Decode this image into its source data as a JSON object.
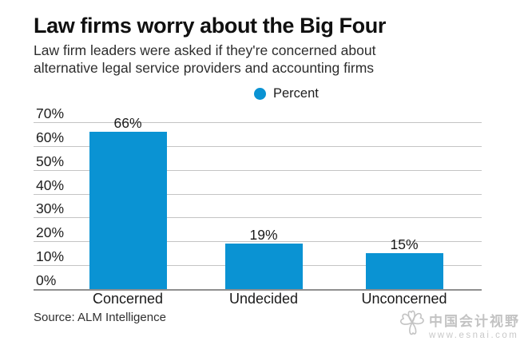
{
  "header": {
    "title": "Law firms worry about the Big Four",
    "subtitle_line1": "Law firm leaders were asked if they're concerned about",
    "subtitle_line2": "alternative legal service providers and accounting firms"
  },
  "legend": {
    "label": "Percent",
    "dot_color": "#0a93d3"
  },
  "chart_data": {
    "type": "bar",
    "title": "Law firms worry about the Big Four",
    "subtitle": "Law firm leaders were asked if they're concerned about alternative legal service providers and accounting firms",
    "categories": [
      "Concerned",
      "Undecided",
      "Unconcerned"
    ],
    "values": [
      66,
      19,
      15
    ],
    "value_labels": [
      "66%",
      "19%",
      "15%"
    ],
    "series_name": "Percent",
    "ylim": [
      0,
      70
    ],
    "yticks": [
      70,
      60,
      50,
      40,
      30,
      20,
      10,
      0
    ],
    "ytick_labels": [
      "70%",
      "60%",
      "50%",
      "40%",
      "30%",
      "20%",
      "10%",
      "0%"
    ],
    "grid": true,
    "legend_position": "top-center",
    "bar_color": "#0a93d3",
    "gridline_color": "#c4c4c4",
    "axis_color": "#8f8f8f"
  },
  "source": {
    "text": "Source: ALM Intelligence"
  },
  "watermark": {
    "brand": "中国会计视野",
    "url": "www.esnai.com"
  }
}
